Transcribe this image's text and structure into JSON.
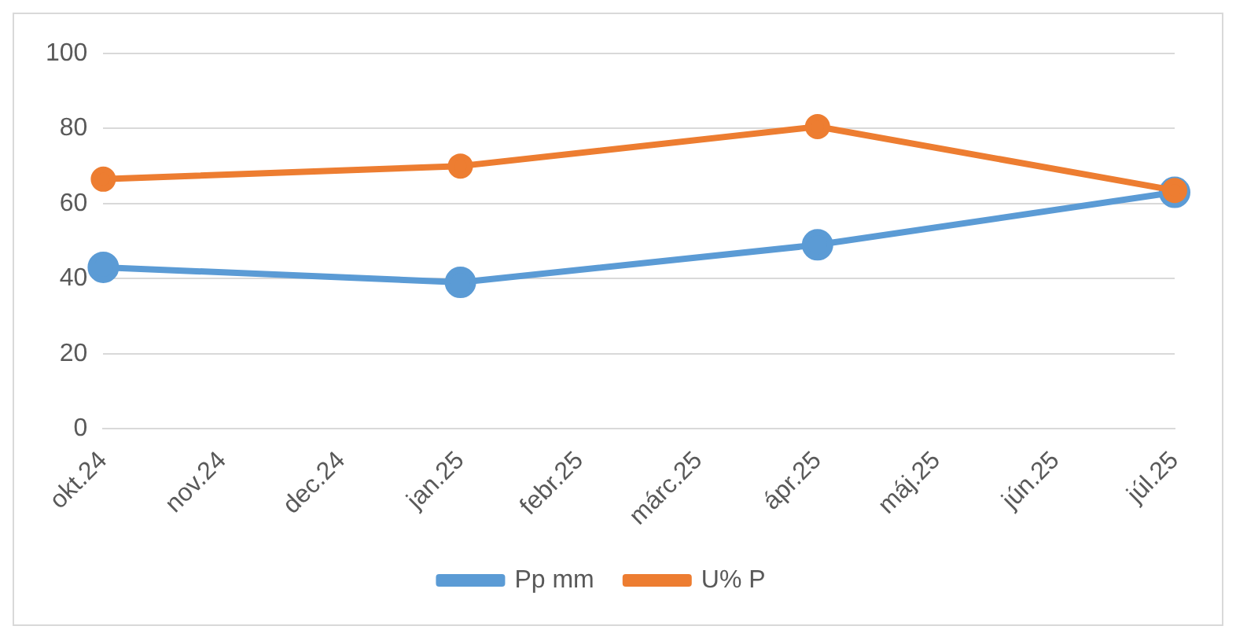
{
  "chart_data": {
    "type": "line",
    "categories": [
      "okt.24",
      "nov.24",
      "dec.24",
      "jan.25",
      "febr.25",
      "márc.25",
      "ápr.25",
      "máj.25",
      "jún.25",
      "júl.25"
    ],
    "series": [
      {
        "name": "Pp mm",
        "color": "#5b9bd5",
        "values": [
          43,
          null,
          null,
          39,
          null,
          null,
          49,
          null,
          null,
          63
        ]
      },
      {
        "name": "U% P",
        "color": "#ed7d31",
        "values": [
          66.5,
          null,
          null,
          70,
          null,
          null,
          80.5,
          null,
          null,
          63.5
        ]
      }
    ],
    "ylim": [
      0,
      100
    ],
    "yticks": [
      0,
      20,
      40,
      60,
      80,
      100
    ],
    "grid": "y",
    "legend": "bottom",
    "marker": "circle",
    "line_style": "solid"
  }
}
